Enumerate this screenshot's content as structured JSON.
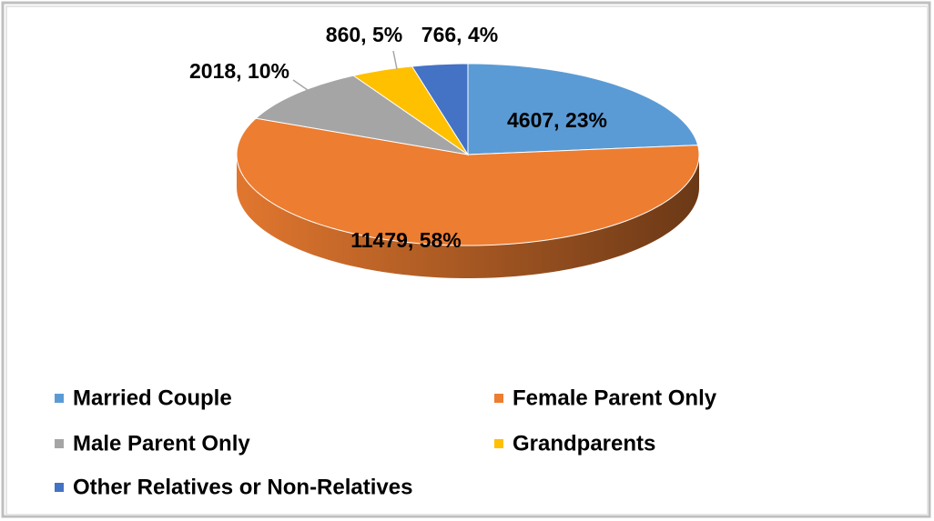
{
  "chart_data": {
    "type": "pie",
    "categories": [
      "Married Couple",
      "Female Parent Only",
      "Male Parent Only",
      "Grandparents",
      "Other Relatives or Non-Relatives"
    ],
    "values": [
      4607,
      11479,
      2018,
      860,
      766
    ],
    "value_labels": [
      "4607, 23%",
      "11479, 58%",
      "2018, 10%",
      "860, 5%",
      "766, 4%"
    ],
    "colors": [
      "#5b9bd5",
      "#ed7d31",
      "#a5a5a5",
      "#ffc000",
      "#4472c4"
    ],
    "legend": "bottom"
  }
}
